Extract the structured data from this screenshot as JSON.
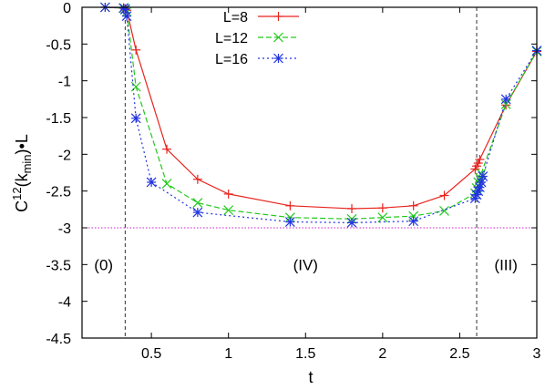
{
  "chart_data": {
    "type": "line",
    "xlabel": "t",
    "ylabel_parts": {
      "c": "C",
      "sup": "12",
      "paren_open": "(k",
      "sub": "min",
      "paren_close": ")",
      "dot": "•",
      "l": "L"
    },
    "xlim": [
      0.05,
      3.0
    ],
    "ylim": [
      -4.5,
      0
    ],
    "xticks": [
      0.5,
      1,
      1.5,
      2,
      2.5,
      3
    ],
    "xtick_labels": [
      "0.5",
      "1",
      "1.5",
      "2",
      "2.5",
      "3"
    ],
    "yticks": [
      0,
      -0.5,
      -1,
      -1.5,
      -2,
      -2.5,
      -3,
      -3.5,
      -4,
      -4.5
    ],
    "ytick_labels": [
      "0",
      "-0.5",
      "-1",
      "-1.5",
      "-2",
      "-2.5",
      "-3",
      "-3.5",
      "-4",
      "-4.5"
    ],
    "grid": false,
    "legend_position": "top-center",
    "series": [
      {
        "name": "L=8",
        "color": "#e8231e",
        "marker": "plus",
        "dash": "solid",
        "x": [
          0.2,
          0.32,
          0.33,
          0.34,
          0.4,
          0.6,
          0.8,
          1.0,
          1.4,
          1.8,
          2.0,
          2.2,
          2.4,
          2.6,
          2.61,
          2.62,
          2.63,
          2.8,
          3.0
        ],
        "y": [
          0.0,
          -0.01,
          -0.02,
          -0.04,
          -0.58,
          -1.93,
          -2.34,
          -2.54,
          -2.7,
          -2.74,
          -2.73,
          -2.7,
          -2.56,
          -2.2,
          -2.16,
          -2.12,
          -2.07,
          -1.33,
          -0.6
        ]
      },
      {
        "name": "L=12",
        "color": "#22c91c",
        "marker": "cross",
        "dash": "dashed",
        "x": [
          0.2,
          0.32,
          0.33,
          0.34,
          0.4,
          0.6,
          0.8,
          1.0,
          1.4,
          1.8,
          2.0,
          2.2,
          2.4,
          2.6,
          2.61,
          2.62,
          2.63,
          2.64,
          2.8,
          3.0
        ],
        "y": [
          0.0,
          -0.01,
          -0.02,
          -0.06,
          -1.08,
          -2.4,
          -2.66,
          -2.76,
          -2.86,
          -2.88,
          -2.86,
          -2.84,
          -2.77,
          -2.53,
          -2.46,
          -2.38,
          -2.32,
          -2.26,
          -1.32,
          -0.6
        ]
      },
      {
        "name": "L=16",
        "color": "#2334e0",
        "marker": "star",
        "dash": "dotted",
        "x": [
          0.2,
          0.32,
          0.33,
          0.34,
          0.4,
          0.5,
          0.8,
          1.4,
          1.8,
          2.2,
          2.6,
          2.61,
          2.62,
          2.63,
          2.64,
          2.65,
          2.8,
          3.0
        ],
        "y": [
          0.0,
          -0.01,
          -0.03,
          -0.12,
          -1.51,
          -2.38,
          -2.79,
          -2.92,
          -2.93,
          -2.91,
          -2.6,
          -2.55,
          -2.5,
          -2.45,
          -2.38,
          -2.3,
          -1.25,
          -0.59
        ]
      }
    ],
    "reference_lines": [
      {
        "orientation": "horizontal",
        "value": -3.0,
        "color": "#d21fc8",
        "dash": "dotted"
      },
      {
        "orientation": "vertical",
        "value": 0.33,
        "color": "#333333",
        "dash": "dashed"
      },
      {
        "orientation": "vertical",
        "value": 2.61,
        "color": "#333333",
        "dash": "dashed"
      }
    ],
    "annotations": [
      {
        "text": "(0)",
        "x": 0.19,
        "y": -3.5
      },
      {
        "text": "(IV)",
        "x": 1.5,
        "y": -3.5
      },
      {
        "text": "(III)",
        "x": 2.8,
        "y": -3.5
      }
    ]
  }
}
